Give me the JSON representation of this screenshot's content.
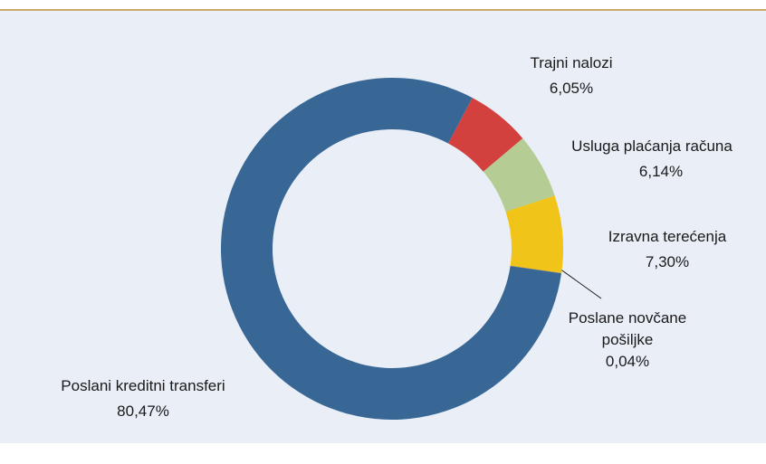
{
  "chart_data": {
    "type": "donut",
    "categories": [
      "Trajni nalozi",
      "Usluga plaćanja računa",
      "Izravna terećenja",
      "Poslane novčane pošiljke",
      "Poslani kreditni transferi"
    ],
    "values": [
      6.05,
      6.14,
      7.3,
      0.04,
      80.47
    ],
    "value_labels": [
      "6,05%",
      "6,14%",
      "7,30%",
      "0,04%",
      "80,47%"
    ],
    "colors": [
      "#d2413e",
      "#b6cc95",
      "#f0c419",
      "#8c7a52",
      "#386795"
    ]
  }
}
